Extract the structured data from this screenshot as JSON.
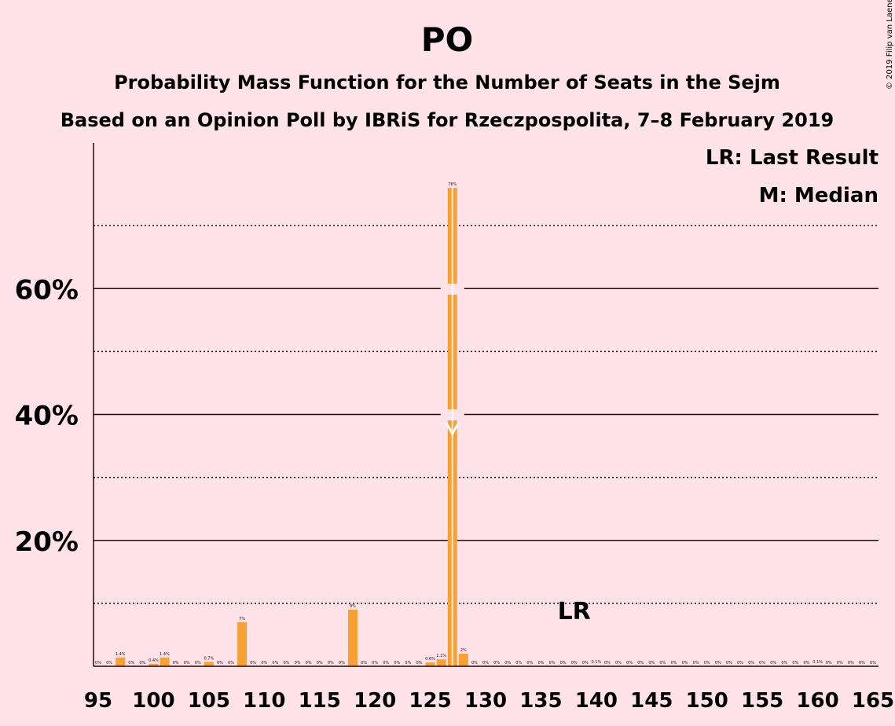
{
  "chart_data": {
    "type": "bar",
    "title": "PO",
    "subtitle1": "Probability Mass Function for the Number of Seats in the Sejm",
    "subtitle2": "Based on an Opinion Poll by IBRiS for Rzeczpospolita, 7–8 February 2019",
    "copyright": "© 2019 Filip van Laenen",
    "legend": [
      "LR: Last Result",
      "M: Median"
    ],
    "last_result_label": "LR",
    "last_result_seat": 138,
    "median_seat": 127,
    "x_range": [
      95,
      165
    ],
    "x_ticks": [
      95,
      100,
      105,
      110,
      115,
      120,
      125,
      130,
      135,
      140,
      145,
      150,
      155,
      160,
      165
    ],
    "y_range": [
      0,
      80
    ],
    "y_ticks": [
      {
        "value": 20,
        "label": "20%"
      },
      {
        "value": 40,
        "label": "40%"
      },
      {
        "value": 60,
        "label": "60%"
      }
    ],
    "y_minor_gridlines": [
      10,
      30,
      50,
      70
    ],
    "bar_color": "#f7a034",
    "bars": [
      {
        "x": 95,
        "value": 0,
        "label": "0%"
      },
      {
        "x": 96,
        "value": 0,
        "label": "0%"
      },
      {
        "x": 97,
        "value": 1.4,
        "label": "1.4%"
      },
      {
        "x": 98,
        "value": 0,
        "label": "0%"
      },
      {
        "x": 99,
        "value": 0,
        "label": "0%"
      },
      {
        "x": 100,
        "value": 0.4,
        "label": "0.4%"
      },
      {
        "x": 101,
        "value": 1.4,
        "label": "1.4%"
      },
      {
        "x": 102,
        "value": 0,
        "label": "0%"
      },
      {
        "x": 103,
        "value": 0,
        "label": "0%"
      },
      {
        "x": 104,
        "value": 0,
        "label": "0%"
      },
      {
        "x": 105,
        "value": 0.7,
        "label": "0.7%"
      },
      {
        "x": 106,
        "value": 0,
        "label": "0%"
      },
      {
        "x": 107,
        "value": 0,
        "label": "0%"
      },
      {
        "x": 108,
        "value": 7,
        "label": "7%"
      },
      {
        "x": 109,
        "value": 0,
        "label": "0%"
      },
      {
        "x": 110,
        "value": 0,
        "label": "0%"
      },
      {
        "x": 111,
        "value": 0,
        "label": "0%"
      },
      {
        "x": 112,
        "value": 0,
        "label": "0%"
      },
      {
        "x": 113,
        "value": 0,
        "label": "0%"
      },
      {
        "x": 114,
        "value": 0,
        "label": "0%"
      },
      {
        "x": 115,
        "value": 0,
        "label": "0%"
      },
      {
        "x": 116,
        "value": 0,
        "label": "0%"
      },
      {
        "x": 117,
        "value": 0,
        "label": "0%"
      },
      {
        "x": 118,
        "value": 9,
        "label": "9%"
      },
      {
        "x": 119,
        "value": 0,
        "label": "0%"
      },
      {
        "x": 120,
        "value": 0,
        "label": "0%"
      },
      {
        "x": 121,
        "value": 0,
        "label": "0%"
      },
      {
        "x": 122,
        "value": 0,
        "label": "0%"
      },
      {
        "x": 123,
        "value": 0,
        "label": "0%"
      },
      {
        "x": 124,
        "value": 0,
        "label": "0%"
      },
      {
        "x": 125,
        "value": 0.6,
        "label": "0.6%"
      },
      {
        "x": 126,
        "value": 1.1,
        "label": "1.1%"
      },
      {
        "x": 127,
        "value": 76,
        "label": "76%"
      },
      {
        "x": 128,
        "value": 2,
        "label": "2%"
      },
      {
        "x": 129,
        "value": 0,
        "label": "0%"
      },
      {
        "x": 130,
        "value": 0,
        "label": "0%"
      },
      {
        "x": 131,
        "value": 0,
        "label": "0%"
      },
      {
        "x": 132,
        "value": 0,
        "label": "0%"
      },
      {
        "x": 133,
        "value": 0,
        "label": "0%"
      },
      {
        "x": 134,
        "value": 0,
        "label": "0%"
      },
      {
        "x": 135,
        "value": 0,
        "label": "0%"
      },
      {
        "x": 136,
        "value": 0,
        "label": "0%"
      },
      {
        "x": 137,
        "value": 0,
        "label": "0%"
      },
      {
        "x": 138,
        "value": 0,
        "label": "0%"
      },
      {
        "x": 139,
        "value": 0,
        "label": "0%"
      },
      {
        "x": 140,
        "value": 0.1,
        "label": "0.1%"
      },
      {
        "x": 141,
        "value": 0,
        "label": "0%"
      },
      {
        "x": 142,
        "value": 0,
        "label": "0%"
      },
      {
        "x": 143,
        "value": 0,
        "label": "0%"
      },
      {
        "x": 144,
        "value": 0,
        "label": "0%"
      },
      {
        "x": 145,
        "value": 0,
        "label": "0%"
      },
      {
        "x": 146,
        "value": 0,
        "label": "0%"
      },
      {
        "x": 147,
        "value": 0,
        "label": "0%"
      },
      {
        "x": 148,
        "value": 0,
        "label": "0%"
      },
      {
        "x": 149,
        "value": 0,
        "label": "0%"
      },
      {
        "x": 150,
        "value": 0,
        "label": "0%"
      },
      {
        "x": 151,
        "value": 0,
        "label": "0%"
      },
      {
        "x": 152,
        "value": 0,
        "label": "0%"
      },
      {
        "x": 153,
        "value": 0,
        "label": "0%"
      },
      {
        "x": 154,
        "value": 0,
        "label": "0%"
      },
      {
        "x": 155,
        "value": 0,
        "label": "0%"
      },
      {
        "x": 156,
        "value": 0,
        "label": "0%"
      },
      {
        "x": 157,
        "value": 0,
        "label": "0%"
      },
      {
        "x": 158,
        "value": 0,
        "label": "0%"
      },
      {
        "x": 159,
        "value": 0,
        "label": "0%"
      },
      {
        "x": 160,
        "value": 0.1,
        "label": "0.1%"
      },
      {
        "x": 161,
        "value": 0,
        "label": "0%"
      },
      {
        "x": 162,
        "value": 0,
        "label": "0%"
      },
      {
        "x": 163,
        "value": 0,
        "label": "0%"
      },
      {
        "x": 164,
        "value": 0,
        "label": "0%"
      },
      {
        "x": 165,
        "value": 0,
        "label": "0%"
      }
    ]
  }
}
